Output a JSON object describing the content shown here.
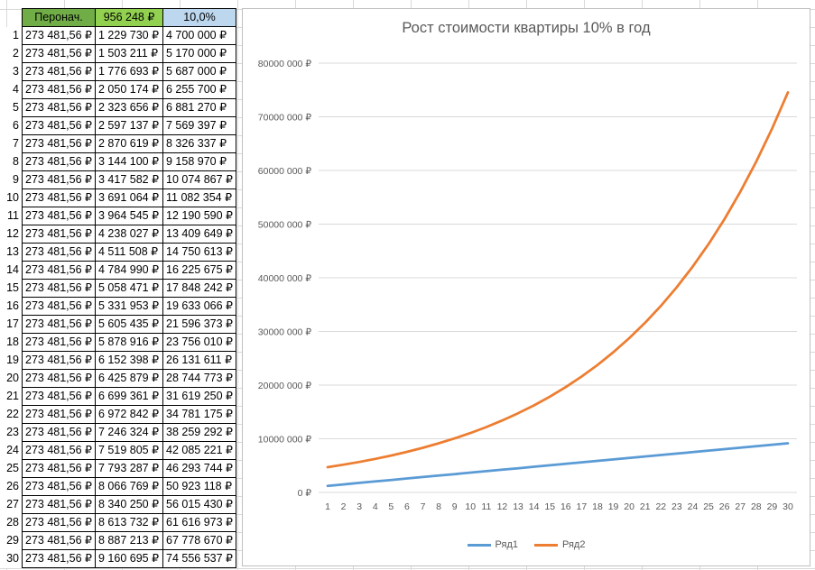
{
  "sheet": {
    "headers": [
      "Перонач.",
      "956 248 ₽",
      "10,0%"
    ],
    "rows": [
      {
        "n": "1",
        "a": "273 481,56 ₽",
        "b": "1 229 730 ₽",
        "c": "4 700 000 ₽"
      },
      {
        "n": "2",
        "a": "273 481,56 ₽",
        "b": "1 503 211 ₽",
        "c": "5 170 000 ₽"
      },
      {
        "n": "3",
        "a": "273 481,56 ₽",
        "b": "1 776 693 ₽",
        "c": "5 687 000 ₽"
      },
      {
        "n": "4",
        "a": "273 481,56 ₽",
        "b": "2 050 174 ₽",
        "c": "6 255 700 ₽"
      },
      {
        "n": "5",
        "a": "273 481,56 ₽",
        "b": "2 323 656 ₽",
        "c": "6 881 270 ₽"
      },
      {
        "n": "6",
        "a": "273 481,56 ₽",
        "b": "2 597 137 ₽",
        "c": "7 569 397 ₽"
      },
      {
        "n": "7",
        "a": "273 481,56 ₽",
        "b": "2 870 619 ₽",
        "c": "8 326 337 ₽"
      },
      {
        "n": "8",
        "a": "273 481,56 ₽",
        "b": "3 144 100 ₽",
        "c": "9 158 970 ₽"
      },
      {
        "n": "9",
        "a": "273 481,56 ₽",
        "b": "3 417 582 ₽",
        "c": "10 074 867 ₽"
      },
      {
        "n": "10",
        "a": "273 481,56 ₽",
        "b": "3 691 064 ₽",
        "c": "11 082 354 ₽"
      },
      {
        "n": "11",
        "a": "273 481,56 ₽",
        "b": "3 964 545 ₽",
        "c": "12 190 590 ₽"
      },
      {
        "n": "12",
        "a": "273 481,56 ₽",
        "b": "4 238 027 ₽",
        "c": "13 409 649 ₽"
      },
      {
        "n": "13",
        "a": "273 481,56 ₽",
        "b": "4 511 508 ₽",
        "c": "14 750 613 ₽"
      },
      {
        "n": "14",
        "a": "273 481,56 ₽",
        "b": "4 784 990 ₽",
        "c": "16 225 675 ₽"
      },
      {
        "n": "15",
        "a": "273 481,56 ₽",
        "b": "5 058 471 ₽",
        "c": "17 848 242 ₽"
      },
      {
        "n": "16",
        "a": "273 481,56 ₽",
        "b": "5 331 953 ₽",
        "c": "19 633 066 ₽"
      },
      {
        "n": "17",
        "a": "273 481,56 ₽",
        "b": "5 605 435 ₽",
        "c": "21 596 373 ₽"
      },
      {
        "n": "18",
        "a": "273 481,56 ₽",
        "b": "5 878 916 ₽",
        "c": "23 756 010 ₽"
      },
      {
        "n": "19",
        "a": "273 481,56 ₽",
        "b": "6 152 398 ₽",
        "c": "26 131 611 ₽"
      },
      {
        "n": "20",
        "a": "273 481,56 ₽",
        "b": "6 425 879 ₽",
        "c": "28 744 773 ₽"
      },
      {
        "n": "21",
        "a": "273 481,56 ₽",
        "b": "6 699 361 ₽",
        "c": "31 619 250 ₽"
      },
      {
        "n": "22",
        "a": "273 481,56 ₽",
        "b": "6 972 842 ₽",
        "c": "34 781 175 ₽"
      },
      {
        "n": "23",
        "a": "273 481,56 ₽",
        "b": "7 246 324 ₽",
        "c": "38 259 292 ₽"
      },
      {
        "n": "24",
        "a": "273 481,56 ₽",
        "b": "7 519 805 ₽",
        "c": "42 085 221 ₽"
      },
      {
        "n": "25",
        "a": "273 481,56 ₽",
        "b": "7 793 287 ₽",
        "c": "46 293 744 ₽"
      },
      {
        "n": "26",
        "a": "273 481,56 ₽",
        "b": "8 066 769 ₽",
        "c": "50 923 118 ₽"
      },
      {
        "n": "27",
        "a": "273 481,56 ₽",
        "b": "8 340 250 ₽",
        "c": "56 015 430 ₽"
      },
      {
        "n": "28",
        "a": "273 481,56 ₽",
        "b": "8 613 732 ₽",
        "c": "61 616 973 ₽"
      },
      {
        "n": "29",
        "a": "273 481,56 ₽",
        "b": "8 887 213 ₽",
        "c": "67 778 670 ₽"
      },
      {
        "n": "30",
        "a": "273 481,56 ₽",
        "b": "9 160 695 ₽",
        "c": "74 556 537 ₽"
      }
    ]
  },
  "colors": {
    "header_green": "#70ad47",
    "header_lightgreen": "#92d050",
    "header_blue": "#bdd7ee",
    "series1": "#5b9bd5",
    "series2": "#ed7d31"
  },
  "chart_data": {
    "type": "line",
    "title": "Рост стоимости квартиры 10% в год",
    "x": [
      "1",
      "2",
      "3",
      "4",
      "5",
      "6",
      "7",
      "8",
      "9",
      "10",
      "11",
      "12",
      "13",
      "14",
      "15",
      "16",
      "17",
      "18",
      "19",
      "20",
      "21",
      "22",
      "23",
      "24",
      "25",
      "26",
      "27",
      "28",
      "29",
      "30"
    ],
    "ylim": [
      0,
      80000000
    ],
    "yticks": [
      0,
      10000000,
      20000000,
      30000000,
      40000000,
      50000000,
      60000000,
      70000000,
      80000000
    ],
    "ytick_labels": [
      "0 ₽",
      "10000 000 ₽",
      "20000 000 ₽",
      "30000 000 ₽",
      "40000 000 ₽",
      "50000 000 ₽",
      "60000 000 ₽",
      "70000 000 ₽",
      "80000 000 ₽"
    ],
    "grid": true,
    "legend_position": "bottom",
    "series": [
      {
        "name": "Ряд1",
        "color": "#5b9bd5",
        "values": [
          1229730,
          1503211,
          1776693,
          2050174,
          2323656,
          2597137,
          2870619,
          3144100,
          3417582,
          3691064,
          3964545,
          4238027,
          4511508,
          4784990,
          5058471,
          5331953,
          5605435,
          5878916,
          6152398,
          6425879,
          6699361,
          6972842,
          7246324,
          7519805,
          7793287,
          8066769,
          8340250,
          8613732,
          8887213,
          9160695
        ]
      },
      {
        "name": "Ряд2",
        "color": "#ed7d31",
        "values": [
          4700000,
          5170000,
          5687000,
          6255700,
          6881270,
          7569397,
          8326337,
          9158970,
          10074867,
          11082354,
          12190590,
          13409649,
          14750613,
          16225675,
          17848242,
          19633066,
          21596373,
          23756010,
          26131611,
          28744773,
          31619250,
          34781175,
          38259292,
          42085221,
          46293744,
          50923118,
          56015430,
          61616973,
          67778670,
          74556537
        ]
      }
    ]
  }
}
